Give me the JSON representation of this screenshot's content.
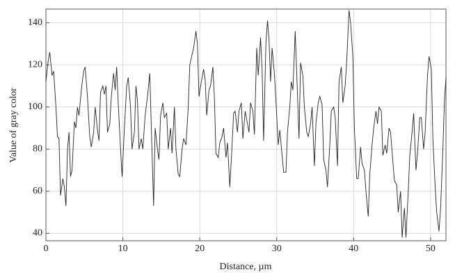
{
  "chart_data": {
    "type": "line",
    "x_label": "Distance, µm",
    "y_label": "Value of gray color",
    "x": [
      0,
      0.3,
      0.5,
      0.8,
      1.0,
      1.3,
      1.5,
      1.7,
      1.9,
      2.2,
      2.4,
      2.6,
      2.8,
      3.0,
      3.2,
      3.4,
      3.7,
      3.9,
      4.1,
      4.3,
      4.6,
      4.9,
      5.1,
      5.4,
      5.7,
      5.9,
      6.2,
      6.4,
      6.7,
      6.9,
      7.1,
      7.4,
      7.6,
      7.8,
      8.0,
      8.3,
      8.5,
      8.8,
      9.0,
      9.2,
      9.4,
      9.7,
      9.9,
      10.2,
      10.5,
      10.7,
      11.0,
      11.2,
      11.5,
      11.7,
      11.9,
      12.1,
      12.4,
      12.6,
      12.9,
      13.2,
      13.5,
      13.7,
      14.0,
      14.2,
      14.5,
      14.7,
      14.9,
      15.2,
      15.4,
      15.7,
      15.9,
      16.2,
      16.4,
      16.7,
      16.9,
      17.2,
      17.4,
      17.7,
      17.9,
      18.2,
      18.5,
      18.7,
      19.0,
      19.2,
      19.5,
      19.7,
      19.9,
      20.2,
      20.5,
      20.7,
      20.9,
      21.2,
      21.4,
      21.7,
      21.9,
      22.1,
      22.4,
      22.6,
      22.9,
      23.1,
      23.4,
      23.6,
      23.9,
      24.1,
      24.4,
      24.6,
      24.9,
      25.1,
      25.4,
      25.6,
      25.9,
      26.1,
      26.4,
      26.6,
      26.9,
      27.1,
      27.4,
      27.6,
      27.9,
      28.1,
      28.3,
      28.6,
      28.8,
      29.0,
      29.2,
      29.4,
      29.7,
      29.9,
      30.2,
      30.4,
      30.7,
      30.9,
      31.2,
      31.4,
      31.7,
      31.9,
      32.1,
      32.4,
      32.6,
      32.9,
      33.1,
      33.4,
      33.6,
      33.9,
      34.1,
      34.4,
      34.6,
      34.9,
      35.1,
      35.4,
      35.6,
      35.9,
      36.1,
      36.4,
      36.6,
      36.9,
      37.1,
      37.4,
      37.6,
      37.9,
      38.1,
      38.4,
      38.6,
      38.9,
      39.1,
      39.4,
      39.6,
      39.9,
      40.1,
      40.4,
      40.6,
      40.9,
      41.1,
      41.4,
      41.6,
      41.9,
      42.1,
      42.4,
      42.6,
      42.9,
      43.1,
      43.3,
      43.6,
      43.8,
      44.1,
      44.3,
      44.6,
      44.8,
      45.1,
      45.3,
      45.6,
      45.8,
      46.1,
      46.3,
      46.6,
      46.8,
      47.1,
      47.3,
      47.6,
      47.8,
      48.1,
      48.3,
      48.6,
      48.8,
      49.1,
      49.3,
      49.6,
      49.8,
      50.1,
      50.3,
      50.6,
      50.8,
      51.1,
      51.3,
      51.6,
      51.8,
      52.0
    ],
    "values": [
      112,
      122,
      126,
      115,
      117,
      100,
      86,
      85,
      58,
      66,
      62,
      53,
      80,
      88,
      67,
      70,
      93,
      90,
      100,
      96,
      108,
      117,
      119,
      105,
      86,
      81,
      88,
      100,
      89,
      84,
      107,
      110,
      106,
      110,
      88,
      92,
      105,
      116,
      108,
      119,
      102,
      80,
      67,
      90,
      110,
      114,
      100,
      80,
      88,
      110,
      103,
      80,
      85,
      80,
      96,
      105,
      116,
      90,
      53,
      90,
      80,
      75,
      96,
      102,
      95,
      97,
      80,
      90,
      78,
      100,
      80,
      68,
      67,
      80,
      85,
      82,
      100,
      120,
      125,
      128,
      136,
      130,
      105,
      112,
      118,
      113,
      96,
      108,
      110,
      119,
      104,
      78,
      76,
      83,
      86,
      90,
      76,
      83,
      62,
      75,
      97,
      98,
      88,
      98,
      102,
      85,
      98,
      94,
      88,
      102,
      98,
      87,
      128,
      115,
      133,
      118,
      84,
      131,
      141,
      132,
      112,
      128,
      116,
      103,
      82,
      89,
      77,
      69,
      69,
      88,
      100,
      112,
      108,
      136,
      116,
      85,
      121,
      115,
      100,
      88,
      86,
      92,
      100,
      72,
      92,
      102,
      105,
      101,
      75,
      70,
      62,
      82,
      98,
      100,
      95,
      72,
      112,
      119,
      102,
      110,
      122,
      146,
      140,
      124,
      90,
      66,
      66,
      81,
      73,
      70,
      60,
      48,
      68,
      82,
      90,
      98,
      92,
      100,
      98,
      77,
      82,
      78,
      90,
      88,
      74,
      65,
      63,
      50,
      60,
      38,
      52,
      38,
      60,
      77,
      88,
      97,
      70,
      78,
      95,
      95,
      80,
      88,
      115,
      124,
      118,
      85,
      62,
      50,
      41,
      52,
      80,
      103,
      114
    ],
    "color": "#222222",
    "xlim": [
      0,
      52
    ],
    "ylim": [
      36.5,
      146.5
    ],
    "xticks": [
      0,
      10,
      20,
      30,
      40,
      50
    ],
    "yticks": [
      40,
      60,
      80,
      100,
      120,
      140
    ],
    "grid": true
  }
}
